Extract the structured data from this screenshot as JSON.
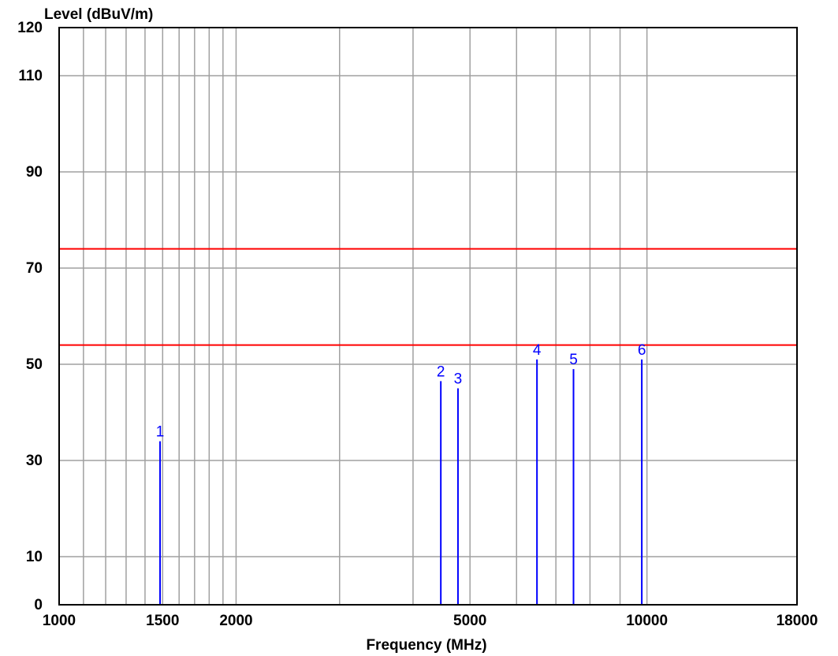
{
  "chart_data": {
    "type": "line",
    "xlabel": "Frequency (MHz)",
    "ylabel": "Level (dBuV/m)",
    "x_scale": "log",
    "xlim": [
      1000,
      18000
    ],
    "ylim": [
      0,
      120
    ],
    "x_tick_labels": [
      "1000",
      "1500",
      "2000",
      "5000",
      "10000",
      "18000"
    ],
    "x_tick_values": [
      1000,
      1500,
      2000,
      5000,
      10000,
      18000
    ],
    "x_grid_values": [
      1000,
      1100,
      1200,
      1300,
      1400,
      1500,
      1600,
      1700,
      1800,
      1900,
      2000,
      3000,
      4000,
      5000,
      6000,
      7000,
      8000,
      9000,
      10000,
      18000
    ],
    "y_tick_labels": [
      "0",
      "10",
      "30",
      "50",
      "70",
      "90",
      "110",
      "120"
    ],
    "y_tick_values": [
      0,
      10,
      30,
      50,
      70,
      90,
      110,
      120
    ],
    "grid": true,
    "limit_lines": [
      {
        "value": 74,
        "color": "#ff0000"
      },
      {
        "value": 54,
        "color": "#ff0000"
      }
    ],
    "markers": [
      {
        "label": "1",
        "x": 1485,
        "y": 34.0
      },
      {
        "label": "2",
        "x": 4460,
        "y": 46.5
      },
      {
        "label": "3",
        "x": 4770,
        "y": 45.0
      },
      {
        "label": "4",
        "x": 6500,
        "y": 51.0
      },
      {
        "label": "5",
        "x": 7500,
        "y": 49.0
      },
      {
        "label": "6",
        "x": 9800,
        "y": 51.0
      }
    ],
    "colors": {
      "grid": "#a0a0a0",
      "frame": "#000000",
      "limit": "#ff0000",
      "marker": "#0000ff"
    }
  }
}
